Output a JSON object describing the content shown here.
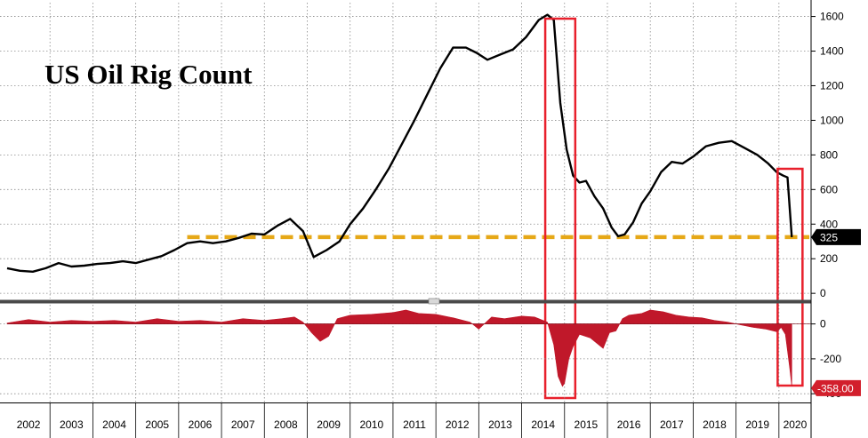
{
  "chart_data": [
    {
      "type": "line",
      "title": "US Oil Rig Count",
      "y_ticks": [
        "0",
        "200",
        "400",
        "600",
        "800",
        "1000",
        "1200",
        "1400",
        "1600"
      ],
      "ylim": [
        -30,
        1680
      ],
      "grid": true,
      "x_ticks": [
        "2002",
        "2003",
        "2004",
        "2005",
        "2006",
        "2007",
        "2008",
        "2009",
        "2010",
        "2011",
        "2012",
        "2013",
        "2014",
        "2015",
        "2016",
        "2017",
        "2018",
        "2019",
        "2020"
      ],
      "xlim": [
        2002.0,
        2020.75
      ],
      "series": [
        {
          "color": "#000000",
          "x": [
            2002.0,
            2002.3,
            2002.6,
            2002.9,
            2003.2,
            2003.5,
            2003.8,
            2004.1,
            2004.4,
            2004.7,
            2005.0,
            2005.3,
            2005.6,
            2005.9,
            2006.2,
            2006.5,
            2006.8,
            2007.1,
            2007.4,
            2007.7,
            2008.0,
            2008.3,
            2008.6,
            2008.9,
            2009.15,
            2009.45,
            2009.75,
            2010.0,
            2010.3,
            2010.6,
            2010.9,
            2011.2,
            2011.5,
            2011.8,
            2012.1,
            2012.4,
            2012.7,
            2012.95,
            2013.2,
            2013.5,
            2013.8,
            2014.1,
            2014.4,
            2014.6,
            2014.75,
            2014.9,
            2015.05,
            2015.2,
            2015.35,
            2015.5,
            2015.7,
            2015.9,
            2016.1,
            2016.25,
            2016.4,
            2016.6,
            2016.8,
            2017.0,
            2017.25,
            2017.5,
            2017.75,
            2018.0,
            2018.3,
            2018.6,
            2018.9,
            2019.2,
            2019.5,
            2019.75,
            2019.95,
            2020.1,
            2020.2,
            2020.3
          ],
          "values": [
            145,
            130,
            125,
            145,
            175,
            155,
            160,
            170,
            175,
            185,
            175,
            195,
            215,
            250,
            290,
            300,
            290,
            300,
            320,
            345,
            340,
            390,
            430,
            360,
            210,
            250,
            300,
            400,
            490,
            600,
            720,
            860,
            1000,
            1150,
            1300,
            1420,
            1420,
            1390,
            1350,
            1380,
            1410,
            1480,
            1580,
            1610,
            1580,
            1100,
            830,
            680,
            640,
            650,
            560,
            490,
            380,
            330,
            340,
            410,
            520,
            590,
            700,
            760,
            750,
            790,
            850,
            870,
            880,
            840,
            800,
            750,
            700,
            680,
            670,
            325
          ]
        }
      ],
      "reference_line": {
        "value": 325,
        "color": "#e6a817",
        "label": "325"
      },
      "highlight_boxes": [
        {
          "x_start": 2014.55,
          "x_end": 2015.25
        },
        {
          "x_start": 2019.97,
          "x_end": 2020.55
        }
      ]
    },
    {
      "type": "area",
      "y_ticks": [
        "0",
        "-200",
        "-400"
      ],
      "ylim": [
        -450,
        110
      ],
      "grid": true,
      "series": [
        {
          "color": "#c0182a",
          "x": [
            2002.0,
            2002.5,
            2003.0,
            2003.5,
            2004.0,
            2004.5,
            2005.0,
            2005.5,
            2006.0,
            2006.5,
            2007.0,
            2007.5,
            2008.0,
            2008.4,
            2008.7,
            2008.9,
            2009.1,
            2009.3,
            2009.5,
            2009.7,
            2010.0,
            2010.5,
            2011.0,
            2011.3,
            2011.6,
            2012.0,
            2012.4,
            2012.8,
            2013.0,
            2013.3,
            2013.6,
            2014.0,
            2014.3,
            2014.6,
            2014.75,
            2014.85,
            2014.95,
            2015.0,
            2015.1,
            2015.2,
            2015.35,
            2015.6,
            2015.9,
            2016.05,
            2016.2,
            2016.35,
            2016.5,
            2016.8,
            2017.0,
            2017.3,
            2017.6,
            2017.9,
            2018.2,
            2018.5,
            2018.8,
            2019.1,
            2019.4,
            2019.7,
            2019.95,
            2020.05,
            2020.15,
            2020.25,
            2020.3
          ],
          "values": [
            5,
            25,
            10,
            20,
            15,
            20,
            10,
            30,
            15,
            20,
            10,
            30,
            20,
            30,
            40,
            10,
            -50,
            -100,
            -70,
            30,
            50,
            55,
            65,
            80,
            60,
            55,
            35,
            10,
            -30,
            40,
            30,
            45,
            40,
            10,
            -120,
            -300,
            -358,
            -340,
            -200,
            -130,
            -60,
            -80,
            -140,
            -50,
            -40,
            30,
            50,
            60,
            80,
            70,
            50,
            40,
            35,
            20,
            10,
            -5,
            -20,
            -30,
            -45,
            -20,
            -60,
            -250,
            -358
          ]
        }
      ],
      "last_value_label": "-358.00"
    }
  ]
}
